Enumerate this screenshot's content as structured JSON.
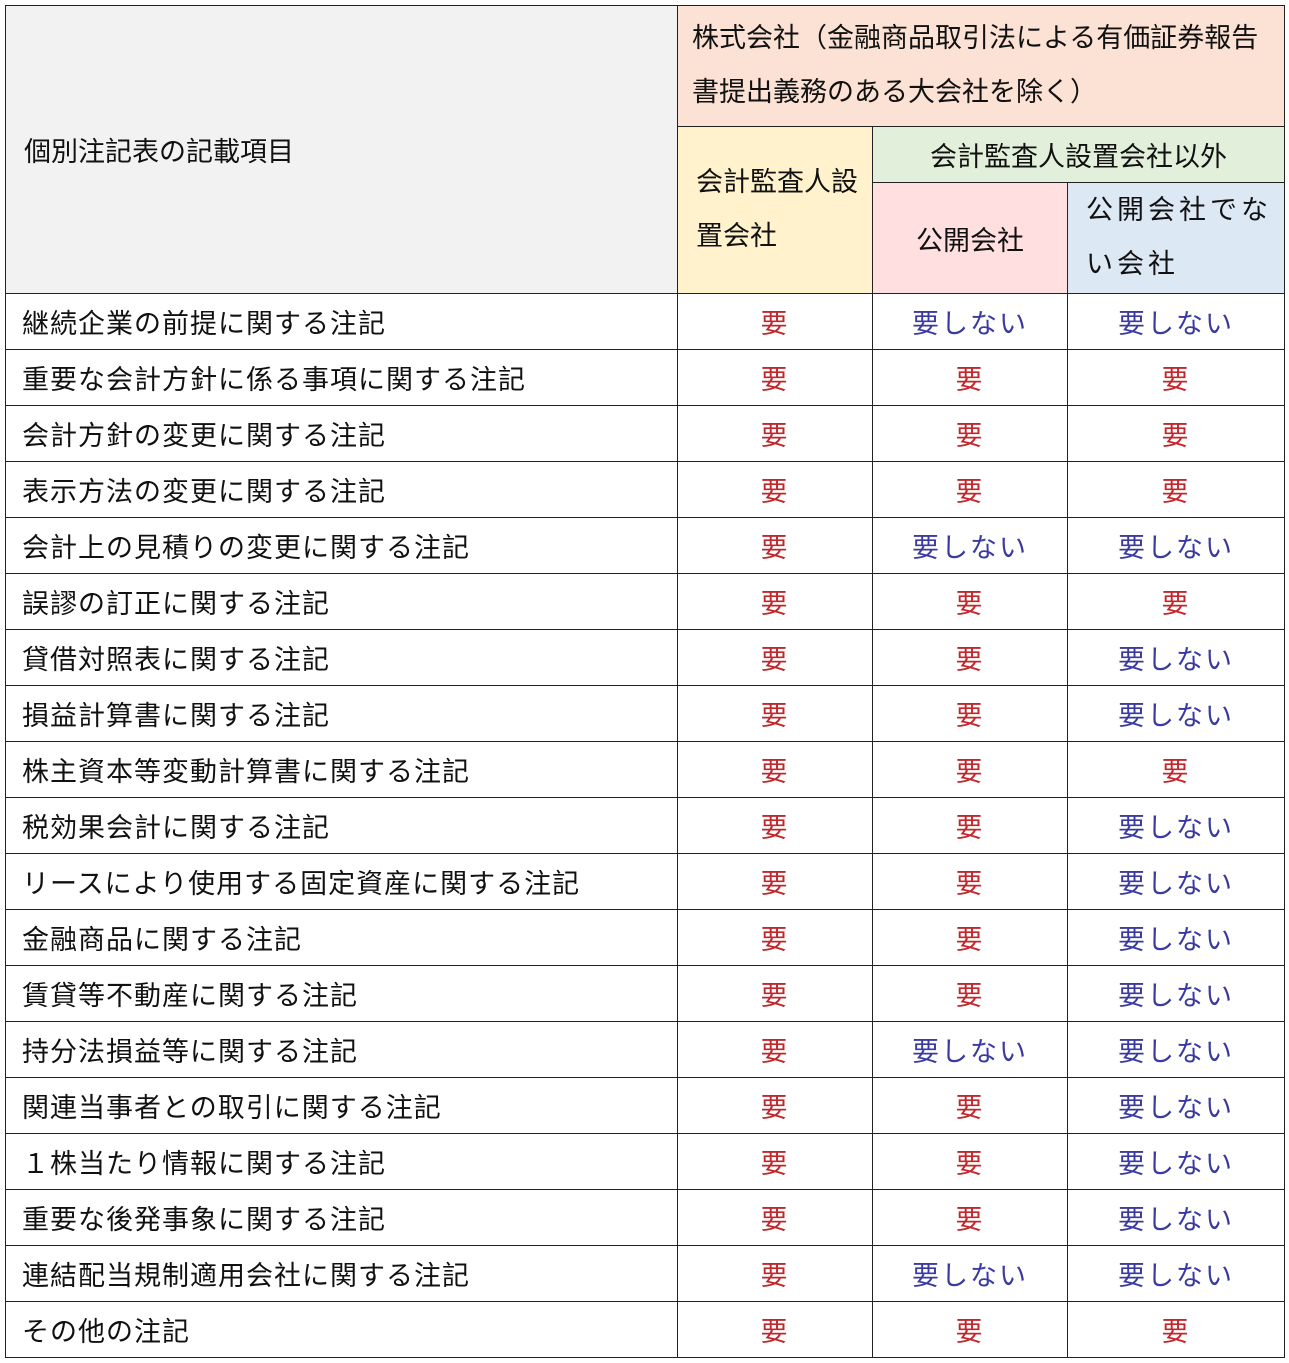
{
  "header": {
    "item_column": "個別注記表の記載項目",
    "company_type": "株式会社（金融商品取引法による有価証券報告書提出義務のある大会社を除く）",
    "with_auditor": "会計監査人設置会社",
    "without_auditor": "会計監査人設置会社以外",
    "public": "公開会社",
    "non_public": "公開会社でない会社"
  },
  "colors": {
    "required": "#c0282d",
    "not_required": "#3a3aa0"
  },
  "rows": [
    {
      "item": "継続企業の前提に関する注記",
      "a": "要",
      "b": "要しない",
      "c": "要しない"
    },
    {
      "item": "重要な会計方針に係る事項に関する注記",
      "a": "要",
      "b": "要",
      "c": "要"
    },
    {
      "item": "会計方針の変更に関する注記",
      "a": "要",
      "b": "要",
      "c": "要"
    },
    {
      "item": "表示方法の変更に関する注記",
      "a": "要",
      "b": "要",
      "c": "要"
    },
    {
      "item": "会計上の見積りの変更に関する注記",
      "a": "要",
      "b": "要しない",
      "c": "要しない"
    },
    {
      "item": "誤謬の訂正に関する注記",
      "a": "要",
      "b": "要",
      "c": "要"
    },
    {
      "item": "貸借対照表に関する注記",
      "a": "要",
      "b": "要",
      "c": "要しない"
    },
    {
      "item": "損益計算書に関する注記",
      "a": "要",
      "b": "要",
      "c": "要しない"
    },
    {
      "item": "株主資本等変動計算書に関する注記",
      "a": "要",
      "b": "要",
      "c": "要"
    },
    {
      "item": "税効果会計に関する注記",
      "a": "要",
      "b": "要",
      "c": "要しない"
    },
    {
      "item": "リースにより使用する固定資産に関する注記",
      "a": "要",
      "b": "要",
      "c": "要しない"
    },
    {
      "item": "金融商品に関する注記",
      "a": "要",
      "b": "要",
      "c": "要しない"
    },
    {
      "item": "賃貸等不動産に関する注記",
      "a": "要",
      "b": "要",
      "c": "要しない"
    },
    {
      "item": "持分法損益等に関する注記",
      "a": "要",
      "b": "要しない",
      "c": "要しない"
    },
    {
      "item": "関連当事者との取引に関する注記",
      "a": "要",
      "b": "要",
      "c": "要しない"
    },
    {
      "item": "１株当たり情報に関する注記",
      "a": "要",
      "b": "要",
      "c": "要しない"
    },
    {
      "item": "重要な後発事象に関する注記",
      "a": "要",
      "b": "要",
      "c": "要しない"
    },
    {
      "item": "連結配当規制適用会社に関する注記",
      "a": "要",
      "b": "要しない",
      "c": "要しない"
    },
    {
      "item": "その他の注記",
      "a": "要",
      "b": "要",
      "c": "要"
    }
  ]
}
